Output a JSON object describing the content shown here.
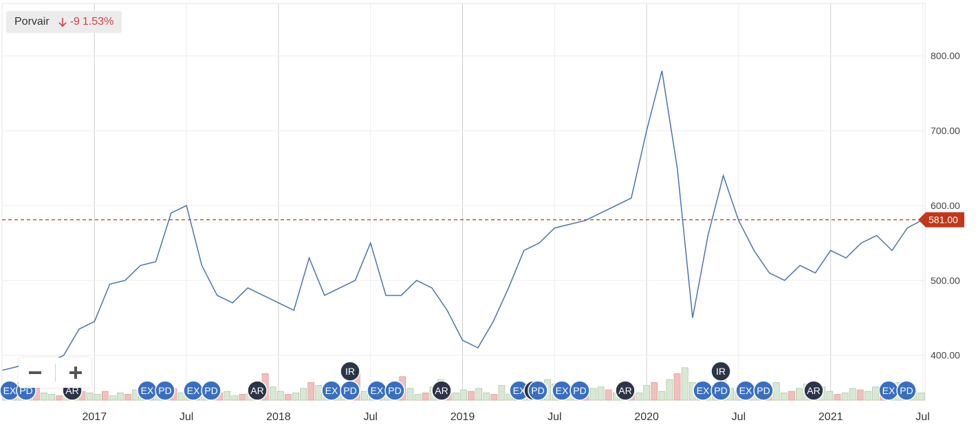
{
  "legend": {
    "name": "Porvair",
    "change_abs": "-9",
    "change_pct": "1.53%",
    "down_color": "#d23f3f"
  },
  "last_price": {
    "value": 581,
    "label": "581.00",
    "color": "#c0391b"
  },
  "zoom": {
    "out_icon": "minus-icon",
    "in_icon": "plus-icon"
  },
  "chart_data": {
    "type": "line",
    "series": [
      {
        "color": "#4a72b2",
        "x": [
          "2016-07",
          "2016-08",
          "2016-09",
          "2016-10",
          "2016-11",
          "2016-12",
          "2017-01",
          "2017-02",
          "2017-03",
          "2017-04",
          "2017-05",
          "2017-06",
          "2017-07",
          "2017-08",
          "2017-09",
          "2017-10",
          "2017-11",
          "2017-12",
          "2018-01",
          "2018-02",
          "2018-03",
          "2018-04",
          "2018-05",
          "2018-06",
          "2018-07",
          "2018-08",
          "2018-09",
          "2018-10",
          "2018-11",
          "2018-12",
          "2019-01",
          "2019-02",
          "2019-03",
          "2019-04",
          "2019-05",
          "2019-06",
          "2019-07",
          "2019-08",
          "2019-09",
          "2019-10",
          "2019-11",
          "2019-12",
          "2020-01",
          "2020-02",
          "2020-03",
          "2020-04",
          "2020-05",
          "2020-06",
          "2020-07",
          "2020-08",
          "2020-09",
          "2020-10",
          "2020-11",
          "2020-12",
          "2021-01",
          "2021-02",
          "2021-03",
          "2021-04",
          "2021-05",
          "2021-06",
          "2021-07"
        ],
        "values": [
          380,
          385,
          395,
          390,
          400,
          435,
          445,
          495,
          500,
          520,
          525,
          590,
          600,
          520,
          480,
          470,
          490,
          480,
          470,
          460,
          530,
          480,
          490,
          500,
          550,
          480,
          480,
          500,
          490,
          460,
          420,
          410,
          445,
          490,
          540,
          550,
          570,
          575,
          580,
          590,
          600,
          610,
          700,
          780,
          650,
          450,
          560,
          640,
          580,
          540,
          510,
          500,
          520,
          510,
          540,
          530,
          550,
          560,
          540,
          570,
          581
        ]
      }
    ],
    "ylim": [
      340,
      870
    ],
    "yticks": [
      "400.00",
      "500.00",
      "600.00",
      "700.00",
      "800.00"
    ],
    "xticks": [
      "2017",
      "Jul",
      "2018",
      "Jul",
      "2019",
      "Jul",
      "2020",
      "Jul",
      "2021",
      "Jul"
    ],
    "volume": {
      "up_color": "#d9e8d4",
      "down_color": "#efc0bd",
      "values": [
        3,
        4,
        12,
        6,
        28,
        5,
        4,
        3,
        5,
        4,
        6,
        5,
        4,
        6,
        3,
        5,
        4,
        7,
        5,
        4,
        3,
        6,
        8,
        5,
        4,
        3,
        7,
        4,
        5,
        6,
        3,
        4,
        5,
        7,
        18,
        9,
        6,
        4,
        5,
        8,
        12,
        10,
        9,
        7,
        5,
        4,
        18,
        6,
        5,
        4,
        7,
        9,
        16,
        8,
        4,
        5,
        9,
        14,
        6,
        5,
        7,
        6,
        8,
        5,
        4,
        10,
        4,
        6,
        5,
        7,
        9,
        14,
        11,
        6,
        5,
        4,
        6,
        8,
        9,
        7,
        5,
        4,
        8,
        5,
        10,
        12,
        6,
        14,
        18,
        22,
        12,
        8,
        6,
        10,
        15,
        8,
        6,
        5,
        4,
        7,
        9,
        12,
        5,
        6,
        8,
        11,
        7,
        9,
        6,
        4,
        5,
        8,
        7,
        6,
        9,
        8,
        10,
        12,
        9,
        7,
        5
      ]
    },
    "events": [
      {
        "label": "EX",
        "style": "blue"
      },
      {
        "label": "PD",
        "style": "blue"
      },
      {
        "label": "AR",
        "style": "dark"
      },
      {
        "label": "EX",
        "style": "blue"
      },
      {
        "label": "PD",
        "style": "blue"
      },
      {
        "label": "EX",
        "style": "blue"
      },
      {
        "label": "PD",
        "style": "blue"
      },
      {
        "label": "AR",
        "style": "dark"
      },
      {
        "label": "EX",
        "style": "blue"
      },
      {
        "label": "PD",
        "style": "blue"
      },
      {
        "label": "IR",
        "style": "dark"
      },
      {
        "label": "EX",
        "style": "blue"
      },
      {
        "label": "PD",
        "style": "blue"
      },
      {
        "label": "AR",
        "style": "dark"
      },
      {
        "label": "EX",
        "style": "blue"
      },
      {
        "label": "IR",
        "style": "dark"
      },
      {
        "label": "PD",
        "style": "blue"
      },
      {
        "label": "EX",
        "style": "blue"
      },
      {
        "label": "PD",
        "style": "blue"
      },
      {
        "label": "AR",
        "style": "dark"
      },
      {
        "label": "EX",
        "style": "blue"
      },
      {
        "label": "PD",
        "style": "blue"
      },
      {
        "label": "IR",
        "style": "dark"
      },
      {
        "label": "EX",
        "style": "blue"
      },
      {
        "label": "PD",
        "style": "blue"
      },
      {
        "label": "AR",
        "style": "dark"
      },
      {
        "label": "EX",
        "style": "blue"
      },
      {
        "label": "PD",
        "style": "blue"
      }
    ],
    "grid": true,
    "legend_position": "top-left"
  }
}
